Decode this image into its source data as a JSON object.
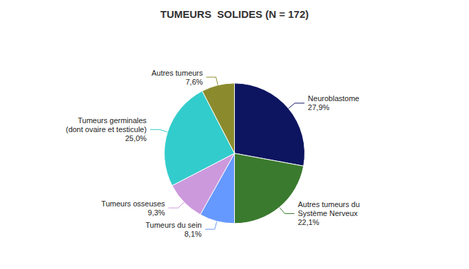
{
  "chart_data": {
    "type": "pie",
    "title": "TUMEURS  SOLIDES (N = 172)",
    "categories": [
      "Neuroblastome\n27,9%",
      "Autres tumeurs du\nSystème Nerveux\n22,1%",
      "Tumeurs du sein\n8,1%",
      "Tumeurs osseuses\n9,3%",
      "Tumeurs germinales\n(dont ovaire et testicule)\n25,0%",
      "Autres tumeurs\n7,6%"
    ],
    "values": [
      27.9,
      22.1,
      8.1,
      9.3,
      25.0,
      7.6
    ],
    "colors": [
      "#0d1560",
      "#3a7a2e",
      "#6699ff",
      "#cc99dd",
      "#33cccc",
      "#8b8b2e"
    ]
  }
}
